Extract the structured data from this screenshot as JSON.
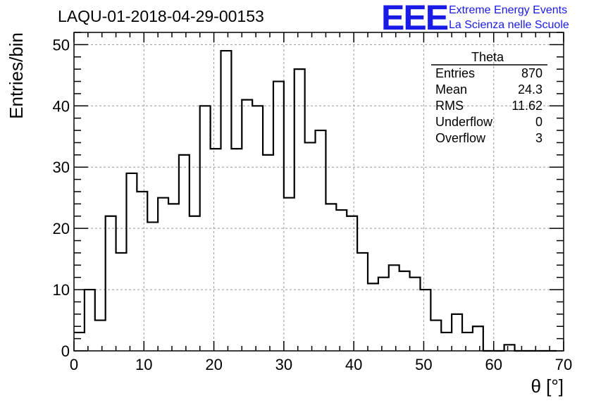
{
  "chart_data": {
    "type": "bar",
    "style": "step-histogram",
    "title": "LAQU-01-2018-04-29-00153",
    "xlabel": "θ [°]",
    "ylabel": "Entries/bin",
    "xlim": [
      0,
      70
    ],
    "ylim": [
      0,
      52
    ],
    "xticks": [
      0,
      10,
      20,
      30,
      40,
      50,
      60,
      70
    ],
    "yticks": [
      0,
      10,
      20,
      30,
      40,
      50
    ],
    "grid": true,
    "bin_width": 1.5,
    "bin_start": 0,
    "values": [
      3,
      10,
      5,
      22,
      16,
      29,
      26,
      21,
      25,
      24,
      32,
      22,
      40,
      33,
      49,
      33,
      41,
      40,
      32,
      44,
      25,
      46,
      34,
      36,
      24,
      23,
      22,
      16,
      11,
      12,
      14,
      13,
      12,
      10,
      5,
      3,
      6,
      3,
      4,
      0,
      0,
      1,
      0,
      0,
      0,
      0
    ],
    "stats": {
      "name": "Theta",
      "rows": [
        {
          "label": "Entries",
          "value": "870"
        },
        {
          "label": "Mean",
          "value": "24.3"
        },
        {
          "label": "RMS",
          "value": "11.62"
        },
        {
          "label": "Underflow",
          "value": "0"
        },
        {
          "label": "Overflow",
          "value": "3"
        }
      ]
    }
  },
  "logo": {
    "text": "EEE",
    "line1": "Extreme Energy Events",
    "line2": "La Scienza nelle Scuole",
    "color": "#1a1ae6"
  }
}
